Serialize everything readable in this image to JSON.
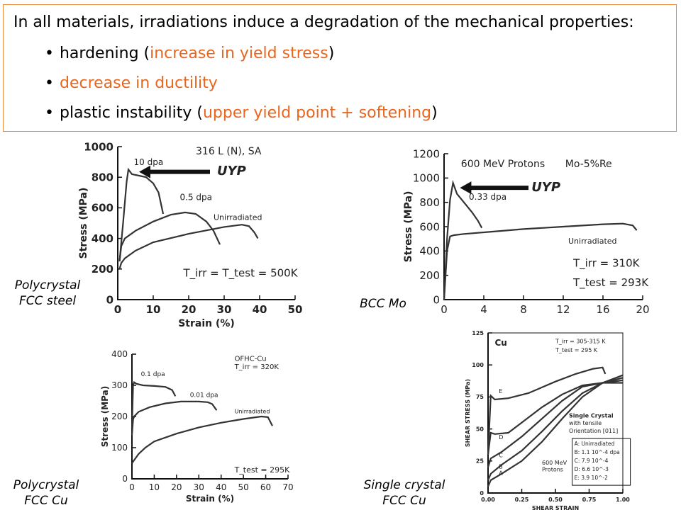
{
  "summary": {
    "title": "In all materials, irradiations induce a degradation of the mechanical properties:",
    "bullets": [
      {
        "parts": [
          {
            "t": "hardening (",
            "hl": false
          },
          {
            "t": "increase in yield stress",
            "hl": true
          },
          {
            "t": ")",
            "hl": false
          }
        ]
      },
      {
        "parts": [
          {
            "t": "decrease in ductility",
            "hl": true
          }
        ]
      },
      {
        "parts": [
          {
            "t": "plastic instability (",
            "hl": false
          },
          {
            "t": "upper yield point + softening",
            "hl": true
          },
          {
            "t": ")",
            "hl": false
          }
        ]
      }
    ],
    "highlight_color": "#e8661e",
    "border_color": "#e8883a"
  },
  "captions": {
    "steel_line1": "Polycrystal",
    "steel_line2": "FCC steel",
    "mo": "BCC Mo",
    "cu_poly_line1": "Polycrystal",
    "cu_poly_line2": "FCC Cu",
    "cu_single_line1": "Single crystal",
    "cu_single_line2": "FCC Cu"
  },
  "chart_data": [
    {
      "id": "steel",
      "type": "line",
      "title": "316 L (N), SA",
      "xlabel": "Strain (%)",
      "ylabel": "Stress (MPa)",
      "xlim": [
        0,
        50
      ],
      "ylim": [
        0,
        1000
      ],
      "xticks": [
        0,
        10,
        20,
        30,
        40,
        50
      ],
      "yticks": [
        0,
        200,
        400,
        600,
        800,
        1000
      ],
      "annotation": "UYP",
      "condition": "T_irr = T_test = 500K",
      "series": [
        {
          "name": "10 dpa",
          "x": [
            0.5,
            1.5,
            2.5,
            3.0,
            4.0,
            6.0,
            8.0,
            10.0,
            11.5,
            12.8
          ],
          "y": [
            250,
            500,
            770,
            850,
            820,
            810,
            800,
            760,
            700,
            560
          ]
        },
        {
          "name": "0.5 dpa",
          "x": [
            0.5,
            1.0,
            2.0,
            5.0,
            10.0,
            15.0,
            19.0,
            22.0,
            25.0,
            27.0,
            28.8
          ],
          "y": [
            250,
            350,
            400,
            450,
            510,
            555,
            570,
            560,
            510,
            450,
            360
          ]
        },
        {
          "name": "Unirradiated",
          "x": [
            0.5,
            1.0,
            2.0,
            5.0,
            10.0,
            20.0,
            30.0,
            35.0,
            37.0,
            38.5,
            39.5
          ],
          "y": [
            200,
            240,
            270,
            320,
            375,
            430,
            475,
            490,
            480,
            440,
            400
          ]
        }
      ]
    },
    {
      "id": "mo",
      "type": "line",
      "title": "600 MeV Protons",
      "material": "Mo-5%Re",
      "xlabel": "",
      "ylabel": "Stress (MPa)",
      "xlim": [
        0,
        20
      ],
      "ylim": [
        0,
        1200
      ],
      "xticks": [
        0,
        4,
        8,
        12,
        16,
        20
      ],
      "yticks": [
        0,
        200,
        400,
        600,
        800,
        1000,
        1200
      ],
      "annotation": "UYP",
      "condition_irr": "T_irr = 310K",
      "condition_test": "T_test = 293K",
      "series": [
        {
          "name": "0.33 dpa",
          "x": [
            0,
            0.3,
            0.6,
            0.9,
            1.3,
            2.0,
            2.8,
            3.4,
            3.8
          ],
          "y": [
            0,
            500,
            820,
            960,
            870,
            800,
            720,
            650,
            590
          ]
        },
        {
          "name": "Unirradiated",
          "x": [
            0,
            0.3,
            0.6,
            1.0,
            2.0,
            5.0,
            8.0,
            12.0,
            16.0,
            18.0,
            19.0,
            19.4
          ],
          "y": [
            0,
            400,
            520,
            530,
            540,
            560,
            580,
            600,
            620,
            625,
            610,
            570
          ]
        }
      ]
    },
    {
      "id": "cu_poly",
      "type": "line",
      "title": "OFHC-Cu",
      "condition_irr": "T_irr = 320K",
      "condition_test": "T_test = 295K",
      "xlabel": "Strain (%)",
      "ylabel": "Stress (MPa)",
      "xlim": [
        0,
        70
      ],
      "ylim": [
        0,
        400
      ],
      "xticks": [
        0,
        10,
        20,
        30,
        40,
        50,
        60,
        70
      ],
      "yticks": [
        0,
        100,
        200,
        300,
        400
      ],
      "series": [
        {
          "name": "0.1 dpa",
          "x": [
            0,
            0.5,
            1,
            2,
            5,
            10,
            15,
            18,
            19.5
          ],
          "y": [
            160,
            300,
            310,
            305,
            300,
            298,
            295,
            285,
            265
          ]
        },
        {
          "name": "0.01 dpa",
          "x": [
            0,
            0.5,
            1,
            3,
            8,
            15,
            22,
            30,
            34,
            36,
            38
          ],
          "y": [
            140,
            190,
            200,
            215,
            230,
            242,
            248,
            248,
            246,
            240,
            220
          ]
        },
        {
          "name": "Unirradiated",
          "x": [
            0,
            1,
            3,
            6,
            10,
            20,
            30,
            40,
            50,
            58,
            61,
            63
          ],
          "y": [
            50,
            60,
            80,
            100,
            120,
            145,
            165,
            180,
            192,
            200,
            198,
            170
          ]
        }
      ]
    },
    {
      "id": "cu_single",
      "type": "line",
      "title": "Cu",
      "condition_irr": "T_irr = 305-315 K",
      "condition_test": "T_test = 295 K",
      "crystal_note_1": "Single Crystal",
      "crystal_note_2": "with tensile",
      "crystal_note_3": "Orientation [011]",
      "protons_1": "600 MeV",
      "protons_2": "Protons",
      "xlabel": "SHEAR STRAIN",
      "ylabel": "SHEAR STRESS (MPa)",
      "xlim": [
        0,
        1.0
      ],
      "ylim": [
        0,
        125
      ],
      "xticks": [
        "0.00",
        "0.25",
        "0.50",
        "0.75",
        "1.00"
      ],
      "yticks": [
        0,
        25,
        50,
        75,
        100,
        125
      ],
      "legend": [
        "A: Unirradiated",
        "B: 1.1 10^-4 dpa",
        "C: 7.9 10^-4",
        "D: 6.6 10^-3",
        "E: 3.9 10^-2"
      ],
      "series": [
        {
          "name": "A",
          "x": [
            0,
            0.02,
            0.1,
            0.25,
            0.4,
            0.55,
            0.7,
            0.85,
            1.0
          ],
          "y": [
            5,
            10,
            15,
            25,
            40,
            58,
            75,
            86,
            92
          ]
        },
        {
          "name": "B",
          "x": [
            0,
            0.02,
            0.1,
            0.25,
            0.4,
            0.55,
            0.7,
            0.85,
            1.0
          ],
          "y": [
            10,
            15,
            22,
            33,
            48,
            64,
            78,
            86,
            90
          ]
        },
        {
          "name": "C",
          "x": [
            0,
            0.02,
            0.1,
            0.25,
            0.4,
            0.55,
            0.7,
            0.85,
            1.0
          ],
          "y": [
            20,
            27,
            32,
            44,
            58,
            72,
            83,
            86,
            88
          ]
        },
        {
          "name": "D",
          "x": [
            0,
            0.02,
            0.05,
            0.15,
            0.25,
            0.4,
            0.55,
            0.7,
            0.85,
            1.0
          ],
          "y": [
            30,
            47,
            46,
            47,
            55,
            67,
            77,
            84,
            86,
            86
          ]
        },
        {
          "name": "E",
          "x": [
            0,
            0.02,
            0.05,
            0.15,
            0.3,
            0.5,
            0.65,
            0.78,
            0.85,
            0.87
          ],
          "y": [
            30,
            76,
            73,
            74,
            78,
            87,
            93,
            97,
            98,
            93
          ]
        }
      ]
    }
  ]
}
